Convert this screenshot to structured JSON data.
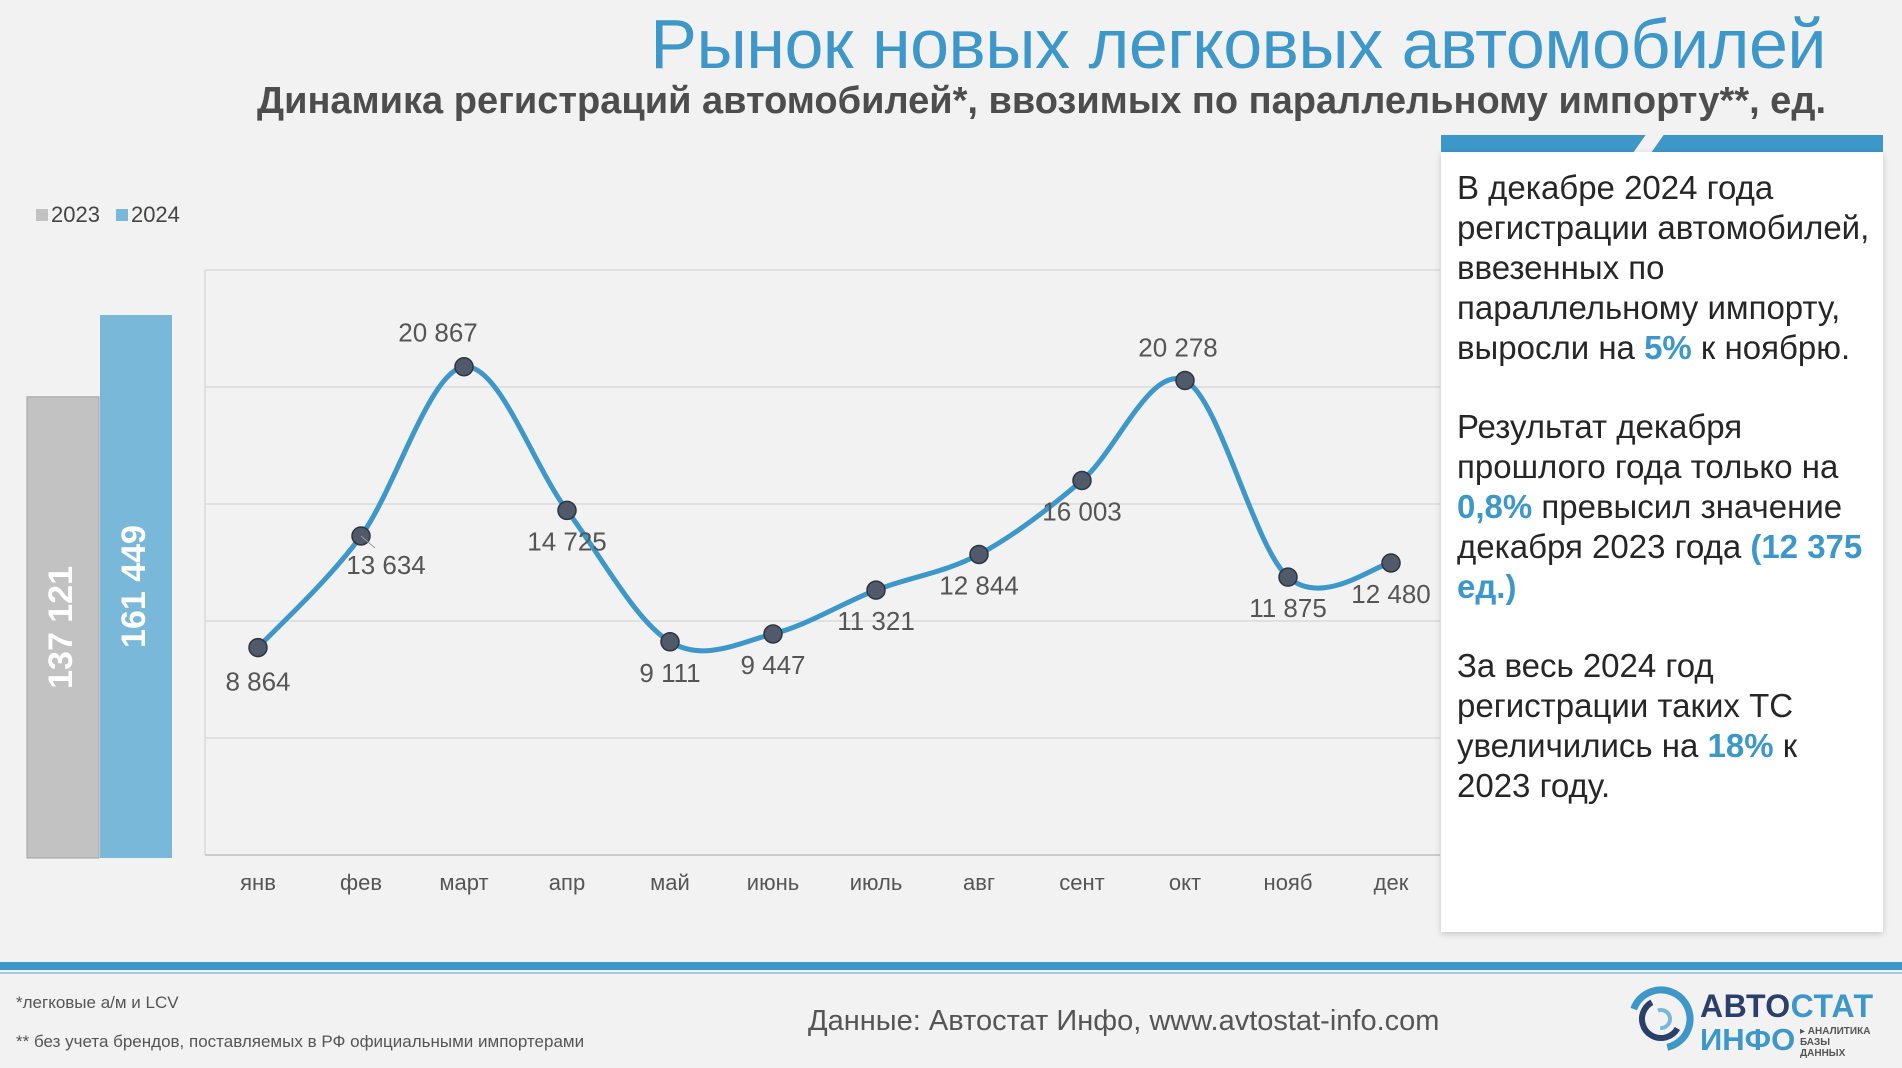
{
  "header": {
    "title": "Рынок новых легковых автомобилей",
    "subtitle": "Динамика регистраций автомобилей*, ввозимых по параллельному импорту**, ед."
  },
  "colors": {
    "accent": "#3d97c8",
    "bar_2023": "#c2c2c2",
    "bar_2024": "#7ab8da",
    "marker": "#505a6b"
  },
  "chart_data": [
    {
      "type": "bar",
      "title": "",
      "categories": [
        "2023",
        "2024"
      ],
      "values": [
        137121,
        161449
      ],
      "value_labels": [
        "137 121",
        "161 449"
      ],
      "legend": [
        "2023",
        "2024"
      ],
      "legend_position": "top-left"
    },
    {
      "type": "line",
      "title": "",
      "categories": [
        "янв",
        "фев",
        "март",
        "апр",
        "май",
        "июнь",
        "июль",
        "авг",
        "сент",
        "окт",
        "нояб",
        "дек"
      ],
      "series": [
        {
          "name": "2024",
          "values": [
            8864,
            13634,
            20867,
            14725,
            9111,
            9447,
            11321,
            12844,
            16003,
            20278,
            11875,
            12480
          ],
          "labels": [
            "8 864",
            "13 634",
            "20 867",
            "14 725",
            "9 111",
            "9 447",
            "11 321",
            "12 844",
            "16 003",
            "20 278",
            "11 875",
            "12 480"
          ]
        }
      ],
      "ylim": [
        0,
        25000
      ],
      "grid": true,
      "smooth": true
    }
  ],
  "panel": {
    "p1_before": "В декабре 2024 года регистрации автомобилей, ввезенных по параллельному импорту, выросли на ",
    "p1_hl": "5%",
    "p1_after": " к ноябрю.",
    "p2_before": "Результат декабря прошлого года только на ",
    "p2_hl1": "0,8%",
    "p2_mid": " превысил значение декабря 2023 года ",
    "p2_hl2": "(12 375 ед.)",
    "p3_before": "За весь 2024 год регистрации таких ТС увеличились на ",
    "p3_hl": "18%",
    "p3_after": " к 2023 году."
  },
  "footer": {
    "note1": "*легковые а/м и LCV",
    "note2": "** без учета брендов, поставляемых в РФ официальными импортерами",
    "source": "Данные: Автостат Инфо, www.avtostat-info.com",
    "logo_top_a": "АВТО",
    "logo_top_b": "СТАТ",
    "logo_bottom": "ИНФО",
    "logo_tagline": "▸ АНАЛИТИКА БАЗЫ ДАННЫХ"
  }
}
